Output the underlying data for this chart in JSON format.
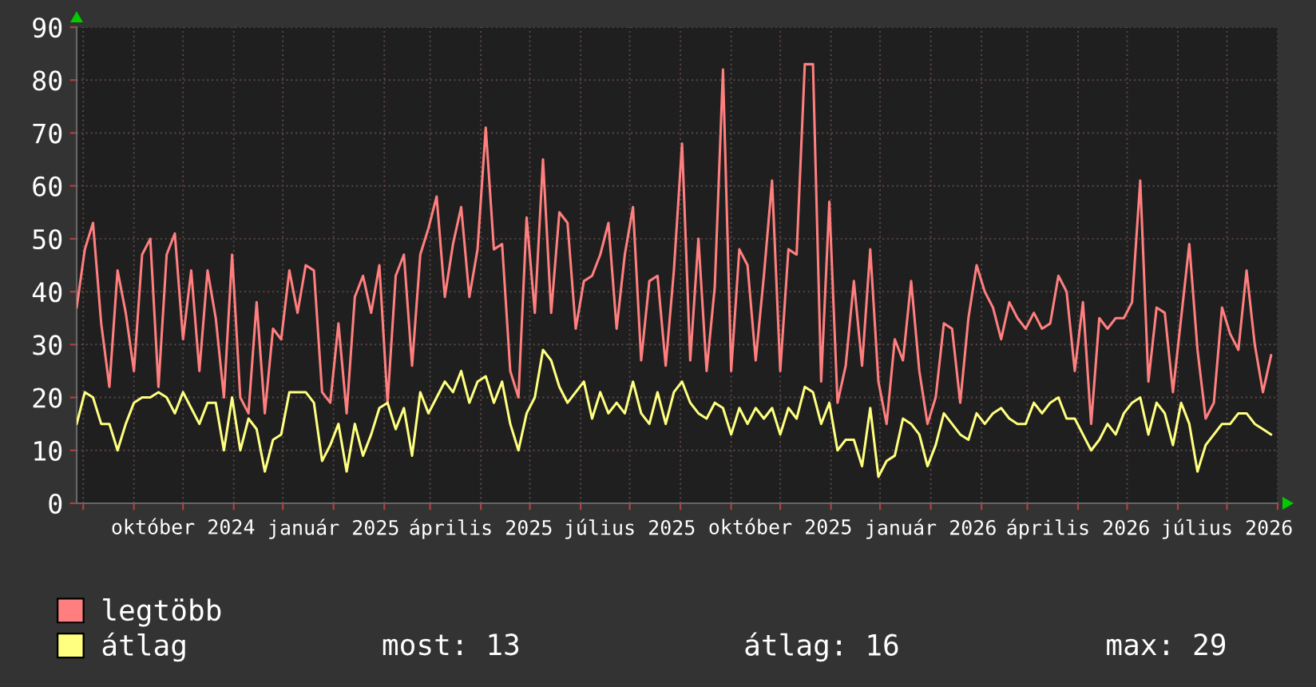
{
  "chart_data": {
    "type": "line",
    "x": [
      "2024-07-28",
      "2024-08-02",
      "2024-08-07",
      "2024-08-12",
      "2024-08-17",
      "2024-08-22",
      "2024-08-27",
      "2024-09-01",
      "2024-09-06",
      "2024-09-11",
      "2024-09-16",
      "2024-09-21",
      "2024-09-26",
      "2024-10-01",
      "2024-10-06",
      "2024-10-11",
      "2024-10-16",
      "2024-10-21",
      "2024-10-26",
      "2024-10-31",
      "2024-11-05",
      "2024-11-10",
      "2024-11-15",
      "2024-11-20",
      "2024-11-25",
      "2024-11-30",
      "2024-12-05",
      "2024-12-10",
      "2024-12-15",
      "2024-12-20",
      "2024-12-25",
      "2024-12-30",
      "2025-01-04",
      "2025-01-09",
      "2025-01-14",
      "2025-01-19",
      "2025-01-24",
      "2025-01-29",
      "2025-02-03",
      "2025-02-08",
      "2025-02-13",
      "2025-02-18",
      "2025-02-23",
      "2025-02-28",
      "2025-03-05",
      "2025-03-10",
      "2025-03-15",
      "2025-03-20",
      "2025-03-25",
      "2025-03-30",
      "2025-04-04",
      "2025-04-09",
      "2025-04-14",
      "2025-04-19",
      "2025-04-24",
      "2025-04-29",
      "2025-05-04",
      "2025-05-09",
      "2025-05-14",
      "2025-05-19",
      "2025-05-24",
      "2025-05-29",
      "2025-06-03",
      "2025-06-08",
      "2025-06-13",
      "2025-06-18",
      "2025-06-23",
      "2025-06-28",
      "2025-07-03",
      "2025-07-08",
      "2025-07-13",
      "2025-07-18",
      "2025-07-23",
      "2025-07-28",
      "2025-08-02",
      "2025-08-07",
      "2025-08-12",
      "2025-08-17",
      "2025-08-22",
      "2025-08-27",
      "2025-09-01",
      "2025-09-06",
      "2025-09-11",
      "2025-09-16",
      "2025-09-21",
      "2025-09-26",
      "2025-10-01",
      "2025-10-06",
      "2025-10-11",
      "2025-10-16",
      "2025-10-21",
      "2025-10-26",
      "2025-10-31",
      "2025-11-05",
      "2025-11-10",
      "2025-11-15",
      "2025-11-20",
      "2025-11-25",
      "2025-11-30",
      "2025-12-05",
      "2025-12-10",
      "2025-12-15",
      "2025-12-20",
      "2025-12-25",
      "2025-12-30",
      "2026-01-04",
      "2026-01-09",
      "2026-01-14",
      "2026-01-19",
      "2026-01-24",
      "2026-01-29",
      "2026-02-03",
      "2026-02-08",
      "2026-02-13",
      "2026-02-18",
      "2026-02-23",
      "2026-02-28",
      "2026-03-05",
      "2026-03-10",
      "2026-03-15",
      "2026-03-20",
      "2026-03-25",
      "2026-03-30",
      "2026-04-04",
      "2026-04-09",
      "2026-04-14",
      "2026-04-19",
      "2026-04-24",
      "2026-04-29",
      "2026-05-04",
      "2026-05-09",
      "2026-05-14",
      "2026-05-19",
      "2026-05-24",
      "2026-05-29",
      "2026-06-03",
      "2026-06-08",
      "2026-06-13",
      "2026-06-18",
      "2026-06-23",
      "2026-06-28",
      "2026-07-03",
      "2026-07-08",
      "2026-07-13",
      "2026-07-18",
      "2026-07-23",
      "2026-07-28"
    ],
    "series": [
      {
        "name": "legtöbb",
        "color": "#ff7f7f",
        "values": [
          37,
          48,
          53,
          34,
          22,
          44,
          36,
          25,
          47,
          50,
          22,
          47,
          51,
          31,
          44,
          25,
          44,
          35,
          20,
          47,
          20,
          17,
          38,
          17,
          33,
          31,
          44,
          36,
          45,
          44,
          21,
          19,
          34,
          17,
          39,
          43,
          36,
          45,
          19,
          43,
          47,
          26,
          47,
          52,
          58,
          39,
          49,
          56,
          39,
          48,
          71,
          48,
          49,
          25,
          20,
          54,
          36,
          65,
          36,
          55,
          53,
          33,
          42,
          43,
          47,
          53,
          33,
          47,
          56,
          27,
          42,
          43,
          26,
          44,
          68,
          27,
          50,
          25,
          41,
          82,
          25,
          48,
          45,
          27,
          43,
          61,
          25,
          48,
          47,
          83,
          83,
          23,
          57,
          19,
          26,
          42,
          26,
          48,
          23,
          15,
          31,
          27,
          42,
          25,
          15,
          20,
          34,
          33,
          19,
          35,
          45,
          40,
          37,
          31,
          38,
          35,
          33,
          36,
          33,
          34,
          43,
          40,
          25,
          38,
          15,
          35,
          33,
          35,
          35,
          38,
          61,
          23,
          37,
          36,
          21,
          35,
          49,
          29,
          16,
          19,
          37,
          32,
          29,
          44,
          30,
          21,
          28
        ]
      },
      {
        "name": "átlag",
        "color": "#ffff80",
        "values": [
          15,
          21,
          20,
          15,
          15,
          10,
          15,
          19,
          20,
          20,
          21,
          20,
          17,
          21,
          18,
          15,
          19,
          19,
          10,
          20,
          10,
          16,
          14,
          6,
          12,
          13,
          21,
          21,
          21,
          19,
          8,
          11,
          15,
          6,
          15,
          9,
          13,
          18,
          19,
          14,
          18,
          9,
          21,
          17,
          20,
          23,
          21,
          25,
          19,
          23,
          24,
          19,
          23,
          15,
          10,
          17,
          20,
          29,
          27,
          22,
          19,
          21,
          23,
          16,
          21,
          17,
          19,
          17,
          23,
          17,
          15,
          21,
          15,
          21,
          23,
          19,
          17,
          16,
          19,
          18,
          13,
          18,
          15,
          18,
          16,
          18,
          13,
          18,
          16,
          22,
          21,
          15,
          19,
          10,
          12,
          12,
          7,
          18,
          5,
          8,
          9,
          16,
          15,
          13,
          7,
          11,
          17,
          15,
          13,
          12,
          17,
          15,
          17,
          18,
          16,
          15,
          15,
          19,
          17,
          19,
          20,
          16,
          16,
          13,
          10,
          12,
          15,
          13,
          17,
          19,
          20,
          13,
          19,
          17,
          11,
          19,
          15,
          6,
          11,
          13,
          15,
          15,
          17,
          17,
          15,
          14,
          13
        ]
      }
    ],
    "xlim": [
      "2024-07-28",
      "2026-08-01"
    ],
    "ylim": [
      0,
      90
    ],
    "xticks": [
      {
        "value": "2024-08-01",
        "label": null
      },
      {
        "value": "2024-09-01",
        "label": null
      },
      {
        "value": "2024-10-01",
        "label": "október 2024"
      },
      {
        "value": "2024-11-01",
        "label": null
      },
      {
        "value": "2024-12-01",
        "label": null
      },
      {
        "value": "2025-01-01",
        "label": "január 2025"
      },
      {
        "value": "2025-02-01",
        "label": null
      },
      {
        "value": "2025-03-01",
        "label": null
      },
      {
        "value": "2025-04-01",
        "label": "április 2025"
      },
      {
        "value": "2025-05-01",
        "label": null
      },
      {
        "value": "2025-06-01",
        "label": null
      },
      {
        "value": "2025-07-01",
        "label": "július 2025"
      },
      {
        "value": "2025-08-01",
        "label": null
      },
      {
        "value": "2025-09-01",
        "label": null
      },
      {
        "value": "2025-10-01",
        "label": "október 2025"
      },
      {
        "value": "2025-11-01",
        "label": null
      },
      {
        "value": "2025-12-01",
        "label": null
      },
      {
        "value": "2026-01-01",
        "label": "január 2026"
      },
      {
        "value": "2026-02-01",
        "label": null
      },
      {
        "value": "2026-03-01",
        "label": null
      },
      {
        "value": "2026-04-01",
        "label": "április 2026"
      },
      {
        "value": "2026-05-01",
        "label": null
      },
      {
        "value": "2026-06-01",
        "label": null
      },
      {
        "value": "2026-07-01",
        "label": "július 2026"
      },
      {
        "value": "2026-08-01",
        "label": null
      }
    ],
    "yticks": [
      0,
      10,
      20,
      30,
      40,
      50,
      60,
      70,
      80,
      90
    ],
    "grid": true,
    "legend": "bottom",
    "annotations": [
      "most: 13",
      "átlag: 16",
      "max: 29"
    ]
  }
}
